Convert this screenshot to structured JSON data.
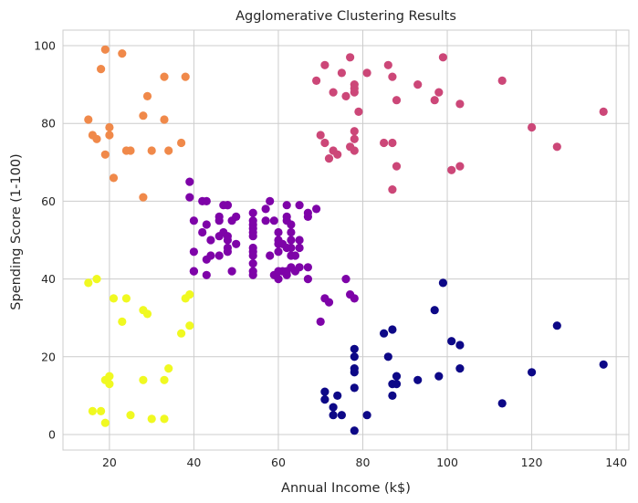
{
  "chart_data": {
    "type": "scatter",
    "title": "Agglomerative Clustering Results",
    "xlabel": "Annual Income (k$)",
    "ylabel": "Spending Score (1-100)",
    "xlim": [
      9,
      143
    ],
    "ylim": [
      -4,
      104
    ],
    "xticks": [
      20,
      40,
      60,
      80,
      100,
      120,
      140
    ],
    "yticks": [
      0,
      20,
      40,
      60,
      80,
      100
    ],
    "grid": true,
    "colors": {
      "cluster_yellow": "#f0f921",
      "cluster_orange": "#f0894a",
      "cluster_purple": "#7e03a8",
      "cluster_pink": "#cc4778",
      "cluster_navy": "#0d0887",
      "grid": "#cccccc",
      "spine": "#cccccc"
    },
    "series": [
      {
        "color": "#f0f921",
        "points": [
          [
            15,
            39
          ],
          [
            16,
            6
          ],
          [
            17,
            40
          ],
          [
            18,
            6
          ],
          [
            19,
            3
          ],
          [
            19,
            14
          ],
          [
            20,
            15
          ],
          [
            20,
            13
          ],
          [
            21,
            35
          ],
          [
            23,
            29
          ],
          [
            24,
            35
          ],
          [
            25,
            5
          ],
          [
            28,
            14
          ],
          [
            28,
            32
          ],
          [
            29,
            31
          ],
          [
            30,
            4
          ],
          [
            33,
            4
          ],
          [
            33,
            14
          ],
          [
            34,
            17
          ],
          [
            37,
            26
          ],
          [
            38,
            35
          ],
          [
            39,
            36
          ],
          [
            39,
            28
          ]
        ]
      },
      {
        "color": "#f0894a",
        "points": [
          [
            15,
            81
          ],
          [
            16,
            77
          ],
          [
            17,
            76
          ],
          [
            18,
            94
          ],
          [
            19,
            99
          ],
          [
            19,
            72
          ],
          [
            20,
            77
          ],
          [
            20,
            79
          ],
          [
            21,
            66
          ],
          [
            23,
            98
          ],
          [
            24,
            73
          ],
          [
            25,
            73
          ],
          [
            28,
            82
          ],
          [
            28,
            61
          ],
          [
            29,
            87
          ],
          [
            30,
            73
          ],
          [
            33,
            92
          ],
          [
            33,
            81
          ],
          [
            34,
            73
          ],
          [
            37,
            75
          ],
          [
            38,
            92
          ]
        ]
      },
      {
        "color": "#7e03a8",
        "points": [
          [
            39,
            65
          ],
          [
            39,
            61
          ],
          [
            40,
            55
          ],
          [
            40,
            47
          ],
          [
            40,
            42
          ],
          [
            40,
            42
          ],
          [
            42,
            52
          ],
          [
            42,
            60
          ],
          [
            43,
            54
          ],
          [
            43,
            60
          ],
          [
            43,
            45
          ],
          [
            43,
            41
          ],
          [
            44,
            50
          ],
          [
            44,
            46
          ],
          [
            46,
            51
          ],
          [
            46,
            46
          ],
          [
            46,
            56
          ],
          [
            46,
            55
          ],
          [
            47,
            52
          ],
          [
            47,
            59
          ],
          [
            48,
            51
          ],
          [
            48,
            59
          ],
          [
            48,
            50
          ],
          [
            48,
            48
          ],
          [
            48,
            59
          ],
          [
            48,
            47
          ],
          [
            49,
            55
          ],
          [
            49,
            42
          ],
          [
            50,
            49
          ],
          [
            50,
            56
          ],
          [
            54,
            47
          ],
          [
            54,
            54
          ],
          [
            54,
            53
          ],
          [
            54,
            48
          ],
          [
            54,
            52
          ],
          [
            54,
            42
          ],
          [
            54,
            51
          ],
          [
            54,
            55
          ],
          [
            54,
            41
          ],
          [
            54,
            44
          ],
          [
            54,
            57
          ],
          [
            54,
            46
          ],
          [
            57,
            58
          ],
          [
            57,
            55
          ],
          [
            58,
            60
          ],
          [
            58,
            46
          ],
          [
            59,
            55
          ],
          [
            59,
            41
          ],
          [
            60,
            49
          ],
          [
            60,
            40
          ],
          [
            60,
            42
          ],
          [
            60,
            52
          ],
          [
            60,
            47
          ],
          [
            60,
            50
          ],
          [
            61,
            42
          ],
          [
            61,
            49
          ],
          [
            62,
            41
          ],
          [
            62,
            48
          ],
          [
            62,
            59
          ],
          [
            62,
            55
          ],
          [
            62,
            56
          ],
          [
            62,
            42
          ],
          [
            63,
            50
          ],
          [
            63,
            46
          ],
          [
            63,
            43
          ],
          [
            63,
            48
          ],
          [
            63,
            52
          ],
          [
            63,
            54
          ],
          [
            64,
            42
          ],
          [
            64,
            46
          ],
          [
            65,
            48
          ],
          [
            65,
            50
          ],
          [
            65,
            43
          ],
          [
            65,
            59
          ],
          [
            67,
            43
          ],
          [
            67,
            57
          ],
          [
            67,
            56
          ],
          [
            67,
            40
          ],
          [
            69,
            58
          ],
          [
            70,
            29
          ],
          [
            71,
            35
          ],
          [
            72,
            34
          ],
          [
            76,
            40
          ],
          [
            77,
            36
          ],
          [
            78,
            35
          ]
        ]
      },
      {
        "color": "#cc4778",
        "points": [
          [
            69,
            91
          ],
          [
            70,
            77
          ],
          [
            71,
            95
          ],
          [
            71,
            75
          ],
          [
            72,
            71
          ],
          [
            73,
            88
          ],
          [
            73,
            73
          ],
          [
            74,
            72
          ],
          [
            75,
            93
          ],
          [
            76,
            87
          ],
          [
            77,
            97
          ],
          [
            77,
            74
          ],
          [
            78,
            90
          ],
          [
            78,
            88
          ],
          [
            78,
            76
          ],
          [
            78,
            89
          ],
          [
            78,
            78
          ],
          [
            78,
            73
          ],
          [
            79,
            83
          ],
          [
            81,
            93
          ],
          [
            85,
            75
          ],
          [
            86,
            95
          ],
          [
            87,
            63
          ],
          [
            87,
            75
          ],
          [
            87,
            92
          ],
          [
            88,
            86
          ],
          [
            88,
            69
          ],
          [
            93,
            90
          ],
          [
            97,
            86
          ],
          [
            98,
            88
          ],
          [
            99,
            97
          ],
          [
            101,
            68
          ],
          [
            103,
            85
          ],
          [
            103,
            69
          ],
          [
            113,
            91
          ],
          [
            120,
            79
          ],
          [
            126,
            74
          ],
          [
            137,
            83
          ]
        ]
      },
      {
        "color": "#0d0887",
        "points": [
          [
            71,
            11
          ],
          [
            71,
            9
          ],
          [
            73,
            5
          ],
          [
            73,
            7
          ],
          [
            74,
            10
          ],
          [
            75,
            5
          ],
          [
            78,
            12
          ],
          [
            78,
            22
          ],
          [
            78,
            17
          ],
          [
            78,
            20
          ],
          [
            78,
            16
          ],
          [
            78,
            1
          ],
          [
            81,
            5
          ],
          [
            85,
            26
          ],
          [
            86,
            20
          ],
          [
            87,
            27
          ],
          [
            87,
            13
          ],
          [
            87,
            10
          ],
          [
            88,
            13
          ],
          [
            88,
            15
          ],
          [
            93,
            14
          ],
          [
            97,
            32
          ],
          [
            98,
            15
          ],
          [
            99,
            39
          ],
          [
            101,
            24
          ],
          [
            103,
            17
          ],
          [
            103,
            23
          ],
          [
            113,
            8
          ],
          [
            120,
            16
          ],
          [
            126,
            28
          ],
          [
            137,
            18
          ]
        ]
      }
    ]
  }
}
